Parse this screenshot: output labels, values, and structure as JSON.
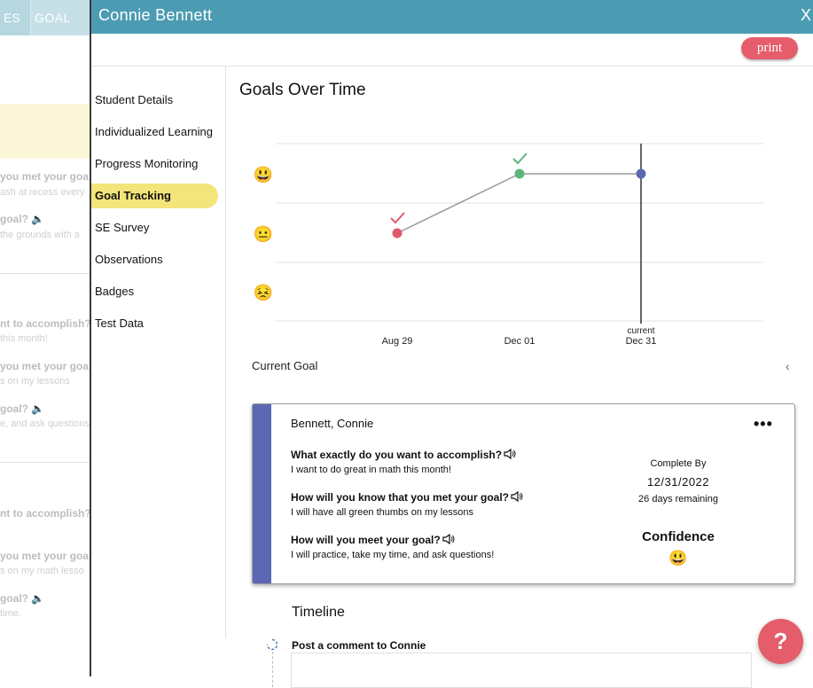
{
  "background": {
    "tabs": [
      "ES",
      "GOAL TR"
    ],
    "rows": [
      {
        "q": "you met your goa",
        "a": "ash at recess every"
      },
      {
        "q": "goal?",
        "a": "the grounds with a"
      },
      {
        "q": "nt to accomplish?",
        "a": "this month!"
      },
      {
        "q": "you met your goa",
        "a": "s on my lessons"
      },
      {
        "q": "goal?",
        "a": "e, and ask questions"
      },
      {
        "q": "nt to accomplish?",
        "a": ""
      },
      {
        "q": "you met your goa",
        "a": "s on my math lesso"
      },
      {
        "q": "goal?",
        "a": "time."
      }
    ]
  },
  "modal": {
    "title": "Connie Bennett",
    "close_label": "X",
    "print_label": "print"
  },
  "sidebar": {
    "items": [
      {
        "label": "Student Details"
      },
      {
        "label": "Individualized Learning"
      },
      {
        "label": "Progress Monitoring"
      },
      {
        "label": "Goal Tracking"
      },
      {
        "label": "SE Survey"
      },
      {
        "label": "Observations"
      },
      {
        "label": "Badges"
      },
      {
        "label": "Test Data"
      }
    ],
    "active_index": 3
  },
  "goals": {
    "title": "Goals Over Time",
    "current_goal_label": "Current Goal",
    "chevron": "‹"
  },
  "chart_data": {
    "type": "line",
    "title": "Goals Over Time",
    "categories": [
      "Aug 29",
      "Dec 01",
      "Dec 31"
    ],
    "marker_label": "current",
    "y_levels": [
      "sad",
      "neutral",
      "happy"
    ],
    "y_icons": [
      "😣",
      "😐",
      "😃"
    ],
    "points": [
      {
        "x": "Aug 29",
        "level": "neutral",
        "color": "#e05a67",
        "checkmark": true
      },
      {
        "x": "Dec 01",
        "level": "happy",
        "color": "#5bb67a",
        "checkmark": true
      },
      {
        "x": "Dec 31",
        "level": "happy",
        "color": "#5a68b3",
        "checkmark": false
      }
    ],
    "current_marker_x": "Dec 31"
  },
  "goal_card": {
    "student_name": "Bennett, Connie",
    "more_label": "•••",
    "accent_color": "#5c68b3",
    "questions": [
      {
        "q": "What exactly do you want to accomplish?",
        "a": "I want to do great in math this month!"
      },
      {
        "q": "How will you know that you met your goal?",
        "a": "I will have all green thumbs on my lessons"
      },
      {
        "q": "How will you meet your goal?",
        "a": "I will practice, take my time, and ask questions!"
      }
    ],
    "complete_by_label": "Complete By",
    "complete_by_date": "12/31/2022",
    "days_remaining": "26 days remaining",
    "confidence_label": "Confidence",
    "confidence_icon": "😃"
  },
  "timeline": {
    "title": "Timeline",
    "comment_label": "Post a comment to Connie"
  },
  "help": {
    "label": "?"
  }
}
